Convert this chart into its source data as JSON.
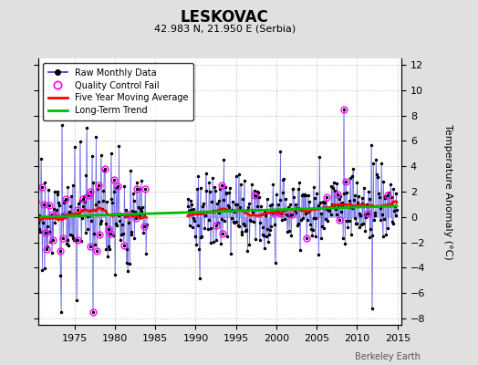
{
  "title": "LESKOVAC",
  "subtitle": "42.983 N, 21.950 E (Serbia)",
  "ylabel": "Temperature Anomaly (°C)",
  "watermark": "Berkeley Earth",
  "ylim": [
    -8.5,
    12.5
  ],
  "xlim": [
    1970.5,
    2015.5
  ],
  "xticks": [
    1975,
    1980,
    1985,
    1990,
    1995,
    2000,
    2005,
    2010,
    2015
  ],
  "yticks": [
    -8,
    -6,
    -4,
    -2,
    0,
    2,
    4,
    6,
    8,
    10,
    12
  ],
  "bg_color": "#e0e0e0",
  "plot_bg_color": "#ffffff",
  "grid_color": "#b0b0b0",
  "bar_color": "#aaaaff",
  "dot_color": "#000000",
  "line_color": "#3333cc",
  "ma_color": "#ff0000",
  "trend_color": "#00bb00",
  "qc_color": "#ff00ff",
  "seed": 17,
  "period1_start": 1970,
  "period1_end": 1984,
  "period2_start": 1989,
  "period2_end": 2015
}
